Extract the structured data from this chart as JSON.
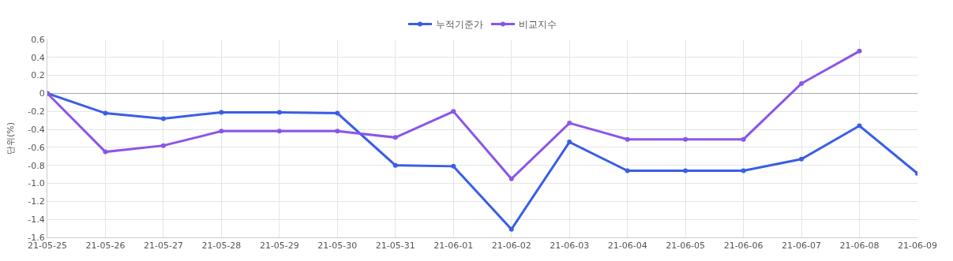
{
  "chart_data": {
    "type": "line",
    "ylabel": "단위(%)",
    "categories": [
      "21-05-25",
      "21-05-26",
      "21-05-27",
      "21-05-28",
      "21-05-29",
      "21-05-30",
      "21-05-31",
      "21-06-01",
      "21-06-02",
      "21-06-03",
      "21-06-04",
      "21-06-05",
      "21-06-06",
      "21-06-07",
      "21-06-08",
      "21-06-09"
    ],
    "series": [
      {
        "name": "누적기준가",
        "color": "#3b5de7",
        "values": [
          0,
          -0.22,
          -0.28,
          -0.21,
          -0.21,
          -0.22,
          -0.8,
          -0.81,
          -1.51,
          -0.54,
          -0.86,
          -0.86,
          -0.86,
          -0.73,
          -0.36,
          -0.89
        ]
      },
      {
        "name": "비교지수",
        "color": "#8b55e8",
        "values": [
          0,
          -0.65,
          -0.58,
          -0.42,
          -0.42,
          -0.42,
          -0.49,
          -0.2,
          -0.95,
          -0.33,
          -0.51,
          -0.51,
          -0.51,
          0.11,
          0.47,
          null
        ]
      }
    ],
    "ylim": [
      -1.6,
      0.6
    ],
    "yticks": [
      0.6,
      0.4,
      0.2,
      0,
      -0.2,
      -0.4,
      -0.6,
      -0.8,
      {
        "value": -1.0,
        "label": "-1.0"
      },
      -1.2,
      -1.4,
      -1.6
    ],
    "grid": true,
    "legend": "top",
    "marker": "circle",
    "line_style": "solid"
  }
}
